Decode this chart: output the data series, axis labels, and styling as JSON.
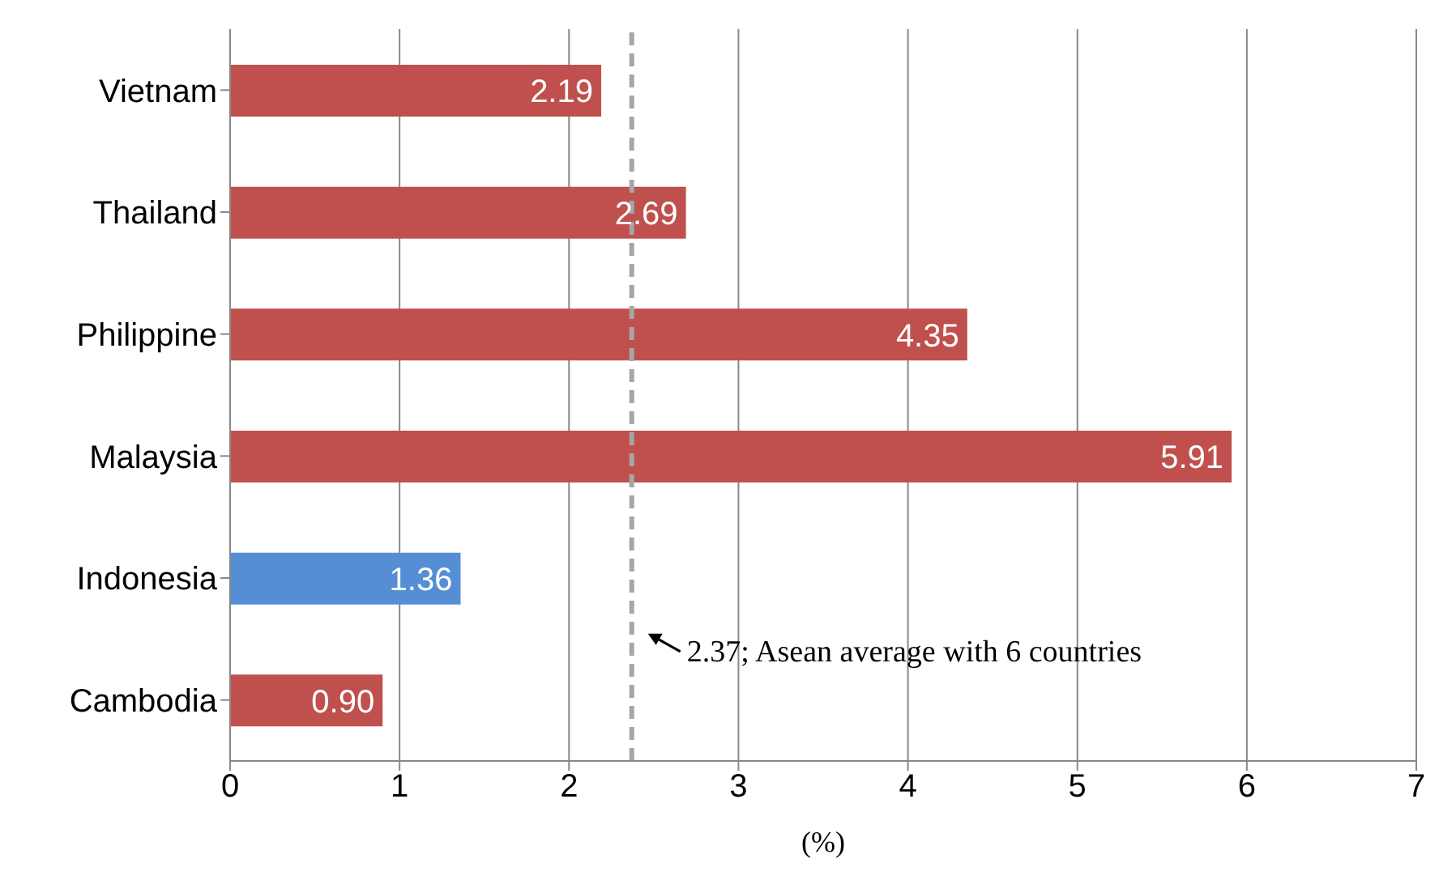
{
  "chart_data": {
    "type": "bar",
    "orientation": "horizontal",
    "xlabel": "(%)",
    "categories": [
      "Vietnam",
      "Thailand",
      "Philippine",
      "Malaysia",
      "Indonesia",
      "Cambodia"
    ],
    "values": [
      2.19,
      2.69,
      4.35,
      5.91,
      1.36,
      0.9
    ],
    "colors": [
      "#c0504d",
      "#c0504d",
      "#c0504d",
      "#c0504d",
      "#558ed5",
      "#c0504d"
    ],
    "value_labels": [
      "2.19",
      "2.69",
      "4.35",
      "5.91",
      "1.36",
      "0.90"
    ],
    "xlim": [
      0,
      7
    ],
    "xticks": [
      0,
      1,
      2,
      3,
      4,
      5,
      6,
      7
    ],
    "grid": "x",
    "ref_lines": [
      {
        "axis": "x",
        "value": 2.37,
        "label": "2.37; Asean average  with 6 countries",
        "color": "#a6a6a6",
        "line_style": "dashed"
      }
    ]
  }
}
